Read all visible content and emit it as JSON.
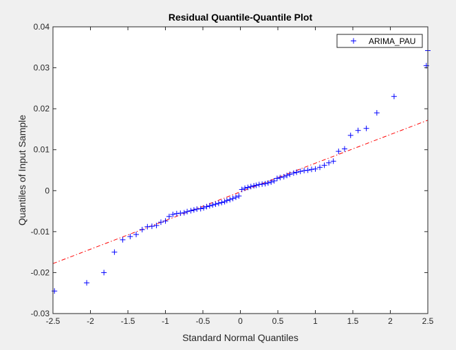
{
  "chart_data": {
    "type": "scatter",
    "title": "Residual Quantile-Quantile Plot",
    "xlabel": "Standard Normal Quantiles",
    "ylabel": "Quantiles of Input Sample",
    "xlim": [
      -2.5,
      2.5
    ],
    "ylim": [
      -0.03,
      0.04
    ],
    "xticks": [
      -2.5,
      -2,
      -1.5,
      -1,
      -0.5,
      0,
      0.5,
      1,
      1.5,
      2,
      2.5
    ],
    "xtick_labels": [
      "-2.5",
      "-2",
      "-1.5",
      "-1",
      "-0.5",
      "0",
      "0.5",
      "1",
      "1.5",
      "2",
      "2.5"
    ],
    "yticks": [
      -0.03,
      -0.02,
      -0.01,
      0,
      0.01,
      0.02,
      0.03,
      0.04
    ],
    "ytick_labels": [
      "-0.03",
      "-0.02",
      "-0.01",
      "0",
      "0.01",
      "0.02",
      "0.03",
      "0.04"
    ],
    "grid": false,
    "legend_position": "top-right",
    "marker_color": "#0000ff",
    "reference_line_color": "#ff0000",
    "series": [
      {
        "name": "ARIMA_PAU",
        "marker": "+",
        "points": [
          [
            -2.48,
            -0.0245
          ],
          [
            -2.05,
            -0.0225
          ],
          [
            -1.82,
            -0.02
          ],
          [
            -1.68,
            -0.015
          ],
          [
            -1.57,
            -0.012
          ],
          [
            -1.47,
            -0.0112
          ],
          [
            -1.39,
            -0.0107
          ],
          [
            -1.31,
            -0.0095
          ],
          [
            -1.24,
            -0.0088
          ],
          [
            -1.18,
            -0.0087
          ],
          [
            -1.12,
            -0.0085
          ],
          [
            -1.06,
            -0.0077
          ],
          [
            -1.0,
            -0.0074
          ],
          [
            -0.95,
            -0.0063
          ],
          [
            -0.9,
            -0.0058
          ],
          [
            -0.85,
            -0.0056
          ],
          [
            -0.8,
            -0.0055
          ],
          [
            -0.75,
            -0.0054
          ],
          [
            -0.71,
            -0.0051
          ],
          [
            -0.66,
            -0.0049
          ],
          [
            -0.62,
            -0.0047
          ],
          [
            -0.58,
            -0.0045
          ],
          [
            -0.53,
            -0.0044
          ],
          [
            -0.49,
            -0.0042
          ],
          [
            -0.45,
            -0.0039
          ],
          [
            -0.41,
            -0.0037
          ],
          [
            -0.37,
            -0.0035
          ],
          [
            -0.33,
            -0.0033
          ],
          [
            -0.29,
            -0.0031
          ],
          [
            -0.25,
            -0.0029
          ],
          [
            -0.21,
            -0.0027
          ],
          [
            -0.18,
            -0.0024
          ],
          [
            -0.14,
            -0.0022
          ],
          [
            -0.1,
            -0.0019
          ],
          [
            -0.06,
            -0.0016
          ],
          [
            -0.02,
            -0.0013
          ],
          [
            0.02,
            0.0003
          ],
          [
            0.06,
            0.0006
          ],
          [
            0.1,
            0.0008
          ],
          [
            0.14,
            0.001
          ],
          [
            0.18,
            0.0012
          ],
          [
            0.21,
            0.0013
          ],
          [
            0.25,
            0.0015
          ],
          [
            0.29,
            0.0016
          ],
          [
            0.33,
            0.0017
          ],
          [
            0.37,
            0.0019
          ],
          [
            0.41,
            0.0021
          ],
          [
            0.45,
            0.0024
          ],
          [
            0.49,
            0.003
          ],
          [
            0.53,
            0.0032
          ],
          [
            0.58,
            0.0034
          ],
          [
            0.62,
            0.0037
          ],
          [
            0.66,
            0.004
          ],
          [
            0.71,
            0.0043
          ],
          [
            0.75,
            0.0045
          ],
          [
            0.8,
            0.0047
          ],
          [
            0.85,
            0.0049
          ],
          [
            0.9,
            0.005
          ],
          [
            0.95,
            0.0052
          ],
          [
            1.0,
            0.0053
          ],
          [
            1.06,
            0.0057
          ],
          [
            1.12,
            0.0062
          ],
          [
            1.18,
            0.0068
          ],
          [
            1.24,
            0.0072
          ],
          [
            1.31,
            0.0096
          ],
          [
            1.39,
            0.0102
          ],
          [
            1.47,
            0.0135
          ],
          [
            1.57,
            0.0147
          ],
          [
            1.68,
            0.0152
          ],
          [
            1.82,
            0.019
          ],
          [
            2.05,
            0.023
          ],
          [
            2.48,
            0.0305
          ],
          [
            2.5,
            0.0342
          ]
        ]
      }
    ],
    "reference_line": {
      "style": "dash-dot",
      "x": [
        -2.5,
        2.5
      ],
      "y": [
        -0.0178,
        0.0172
      ]
    }
  }
}
